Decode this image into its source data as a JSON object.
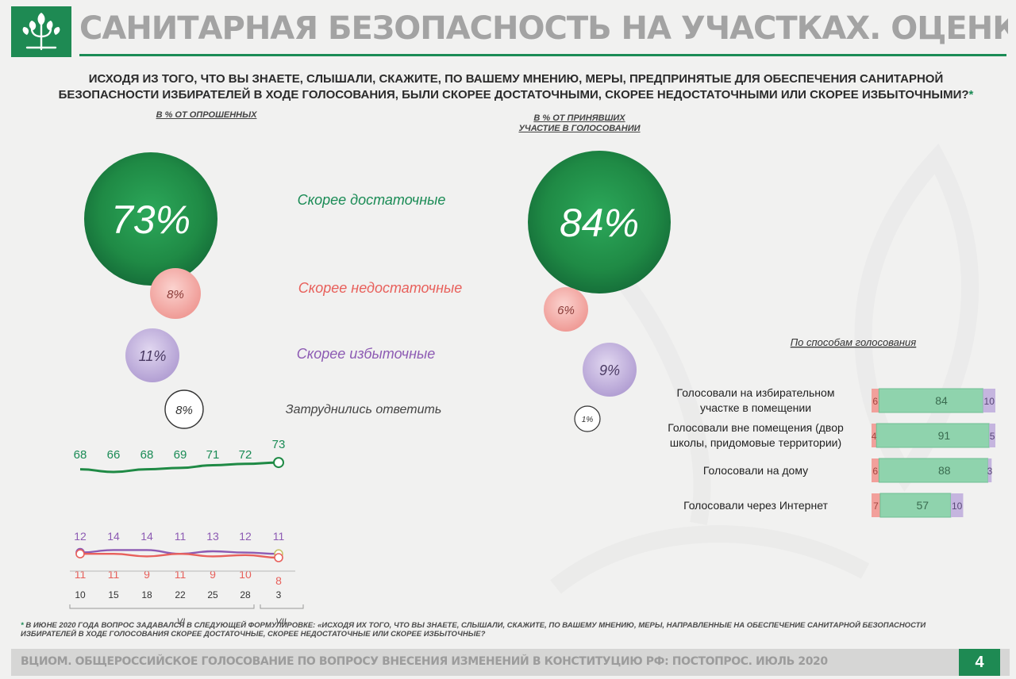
{
  "header": {
    "title": "САНИТАРНАЯ БЕЗОПАСНОСТЬ НА УЧАСТКАХ. ОЦЕНКИ ДОСТАТОЧНОСТИ МЕР",
    "logo_icon": "tree-logo-icon",
    "accent": "#1a8b55"
  },
  "question": {
    "line1": "Исходя из того, что Вы знаете, слышали, скажите, по Вашему мнению, меры, предпринятые для обеспечения санитарной",
    "line2": "безопасности избирателей в ходе голосования, были скорее достаточными, скорее недостаточными или скорее избыточными?",
    "star": "*"
  },
  "chart_data": [
    {
      "type": "bubble",
      "subtitle": "в % от опрошенных",
      "categories": [
        "Скорее достаточные",
        "Скорее недостаточные",
        "Скорее избыточные",
        "Затруднились ответить"
      ],
      "values": [
        73,
        8,
        11,
        8
      ],
      "labels": [
        "73%",
        "8%",
        "11%",
        "8%"
      ],
      "colors": [
        "#1f8a45",
        "#f2a09b",
        "#b9a6d7",
        "#ffffff"
      ]
    },
    {
      "type": "bubble",
      "subtitle_line1": "в % от принявших",
      "subtitle_line2": "участие в голосовании",
      "categories": [
        "Скорее достаточные",
        "Скорее недостаточные",
        "Скорее избыточные",
        "Затруднились ответить"
      ],
      "values": [
        84,
        6,
        9,
        1
      ],
      "labels": [
        "84%",
        "6%",
        "9%",
        "1%"
      ],
      "colors": [
        "#1f8a45",
        "#f2a09b",
        "#b9a6d7",
        "#ffffff"
      ]
    },
    {
      "type": "line",
      "x": [
        "10",
        "15",
        "18",
        "22",
        "25",
        "28",
        "3"
      ],
      "series": [
        {
          "values": [
            68,
            66,
            68,
            69,
            71,
            72,
            73
          ],
          "color": "#1f8a45"
        }
      ]
    },
    {
      "type": "line",
      "x": [
        "10",
        "15",
        "18",
        "22",
        "25",
        "28",
        "3"
      ],
      "month_labels": [
        "VI",
        "VII"
      ],
      "series": [
        {
          "values": [
            12,
            14,
            14,
            11,
            13,
            12,
            11
          ],
          "color": "#8d5bb3"
        },
        {
          "values": [
            11,
            11,
            9,
            11,
            9,
            10,
            8
          ],
          "color": "#e8605b"
        }
      ]
    },
    {
      "type": "bar",
      "stacked": true,
      "title": "По способам голосования",
      "categories": [
        [
          "Голосовали на избирательном",
          "участке в помещении"
        ],
        [
          "Голосовали вне помещения (двор",
          "школы, придомовые территории)"
        ],
        [
          "Голосовали на дому"
        ],
        [
          "Голосовали через Интернет"
        ]
      ],
      "series": [
        {
          "values": [
            6,
            4,
            6,
            7
          ],
          "color": "#f2a09b"
        },
        {
          "values": [
            84,
            91,
            88,
            57
          ],
          "color": "#8fd3ad"
        },
        {
          "values": [
            10,
            5,
            3,
            10
          ],
          "color": "#c5b5df"
        }
      ],
      "xlim": [
        0,
        100
      ]
    }
  ],
  "footnote": {
    "star": "*",
    "line1": "в июне 2020 года вопрос задавался в следующей формулировке: «Исходя их того, что Вы знаете, слышали, скажите, по Вашему мнению, меры, направленные на обеспечение санитарной безопасности",
    "line2": "избирателей в ходе голосования скорее достаточные, скорее недостаточные или скорее избыточные?"
  },
  "footer": {
    "text": "ВЦИОМ. ОБЩЕРОССИЙСКОЕ ГОЛОСОВАНИЕ ПО ВОПРОСУ ВНЕСЕНИЯ ИЗМЕНЕНИЙ В КОНСТИТУЦИЮ РФ: ПОСТОПРОС. ИЮЛЬ 2020",
    "page": "4"
  }
}
